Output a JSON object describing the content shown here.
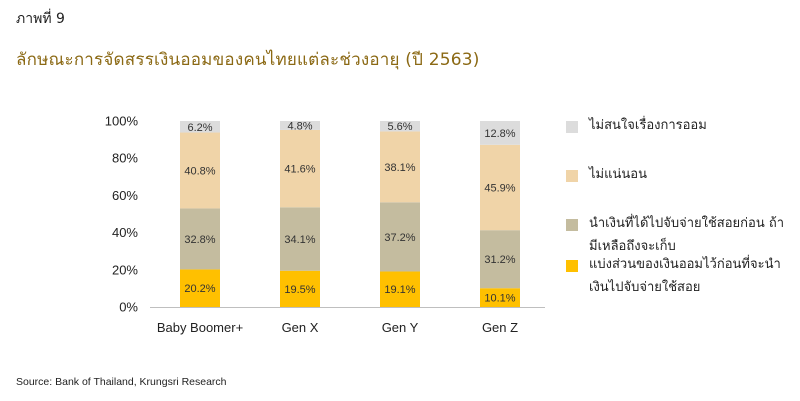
{
  "figure_label": "ภาพที่ 9",
  "source": "Source: Bank of Thailand, Krungsri Research",
  "chart_data": {
    "type": "bar",
    "stacked": true,
    "title": "ลักษณะการจัดสรรเงินออมของคนไทยแต่ละช่วงอายุ (ปี 2563)",
    "categories": [
      "Baby Boomer+",
      "Gen X",
      "Gen Y",
      "Gen Z"
    ],
    "ylim": [
      0,
      100
    ],
    "yticks": [
      "0%",
      "20%",
      "40%",
      "60%",
      "80%",
      "100%"
    ],
    "grid": false,
    "legend_position": "right",
    "series": [
      {
        "name": "แบ่งส่วนของเงินออมไว้ก่อนที่จะนำเงินไปจับจ่ายใช้สอย",
        "color": "#FFC000",
        "values": [
          20.2,
          19.5,
          19.1,
          10.1
        ],
        "labels": [
          "20.2%",
          "19.5%",
          "19.1%",
          "10.1%"
        ]
      },
      {
        "name": "นำเงินที่ได้ไปจับจ่ายใช้สอยก่อน ถ้ามีเหลือถึงจะเก็บ",
        "color": "#C4BC9F",
        "values": [
          32.8,
          34.1,
          37.2,
          31.2
        ],
        "labels": [
          "32.8%",
          "34.1%",
          "37.2%",
          "31.2%"
        ]
      },
      {
        "name": "ไม่แน่นอน",
        "color": "#F0D4A8",
        "values": [
          40.8,
          41.6,
          38.1,
          45.9
        ],
        "labels": [
          "40.8%",
          "41.6%",
          "38.1%",
          "45.9%"
        ]
      },
      {
        "name": "ไม่สนใจเรื่องการออม",
        "color": "#DCDCDC",
        "values": [
          6.2,
          4.8,
          5.6,
          12.8
        ],
        "labels": [
          "6.2%",
          "4.8%",
          "5.6%",
          "12.8%"
        ]
      }
    ]
  }
}
